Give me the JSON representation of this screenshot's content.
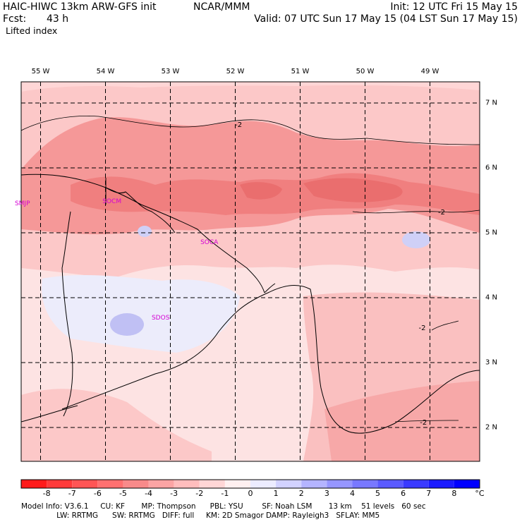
{
  "header": {
    "model_title": "HAIC-HIWC 13km ARW-GFS init",
    "org": "NCAR/MMM",
    "init_label": "Init: 12 UTC Fri 15 May 15",
    "fcst_label": "Fcst:",
    "fcst_value": "43 h",
    "valid_label": "Valid: 07 UTC Sun 17 May 15 (04 LST Sun 17 May 15)",
    "field_name": "Lifted index"
  },
  "map": {
    "longitude_labels": [
      "55 W",
      "54 W",
      "53 W",
      "52 W",
      "51 W",
      "50 W",
      "49 W"
    ],
    "latitude_labels": [
      "7 N",
      "6 N",
      "5 N",
      "4 N",
      "3 N",
      "2 N"
    ],
    "longitudes": [
      -55,
      -54,
      -53,
      -52,
      -51,
      -50,
      -49
    ],
    "latitudes": [
      7,
      6,
      5,
      4,
      3,
      2
    ],
    "stations": [
      {
        "id": "SMJP",
        "lon": -55.28,
        "lat": 5.45
      },
      {
        "id": "SOCM",
        "lon": -53.9,
        "lat": 5.48
      },
      {
        "id": "SOCA",
        "lon": -52.4,
        "lat": 4.85
      },
      {
        "id": "SDOS",
        "lon": -53.15,
        "lat": 3.68
      }
    ],
    "contour_labels": [
      {
        "text": "-2",
        "lon": -51.95,
        "lat": 6.65
      },
      {
        "text": "-2",
        "lon": -48.82,
        "lat": 5.3
      },
      {
        "text": "-2",
        "lon": -49.12,
        "lat": 3.52
      },
      {
        "text": "-2",
        "lon": -49.1,
        "lat": 2.07
      }
    ],
    "station_color": "#d400d4"
  },
  "colorbar": {
    "labels": [
      "-8",
      "-7",
      "-6",
      "-5",
      "-4",
      "-3",
      "-2",
      "-1",
      "0",
      "1",
      "2",
      "3",
      "4",
      "5",
      "6",
      "7",
      "8"
    ],
    "unit": "°C",
    "colors": [
      "#ff1a1a",
      "#ff3a3a",
      "#ff5555",
      "#ff7070",
      "#f88a8a",
      "#fca4a4",
      "#ffbdbd",
      "#ffd6d6",
      "#fff0f0",
      "#ececff",
      "#d2d2ff",
      "#b4b4ff",
      "#9696ff",
      "#7878ff",
      "#5a5aff",
      "#3a3aff",
      "#1a1aff",
      "#0000ff"
    ]
  },
  "model_info": {
    "line1": "Model Info: V3.6.1     CU: KF       MP: Thompson      PBL: YSU        SF: Noah LSM       13 km    51 levels   60 sec",
    "line2": "               LW: RRTMG      SW: RRTMG   DIFF: full     KM: 2D Smagor DAMP: Rayleigh3   SFLAY: MM5"
  }
}
